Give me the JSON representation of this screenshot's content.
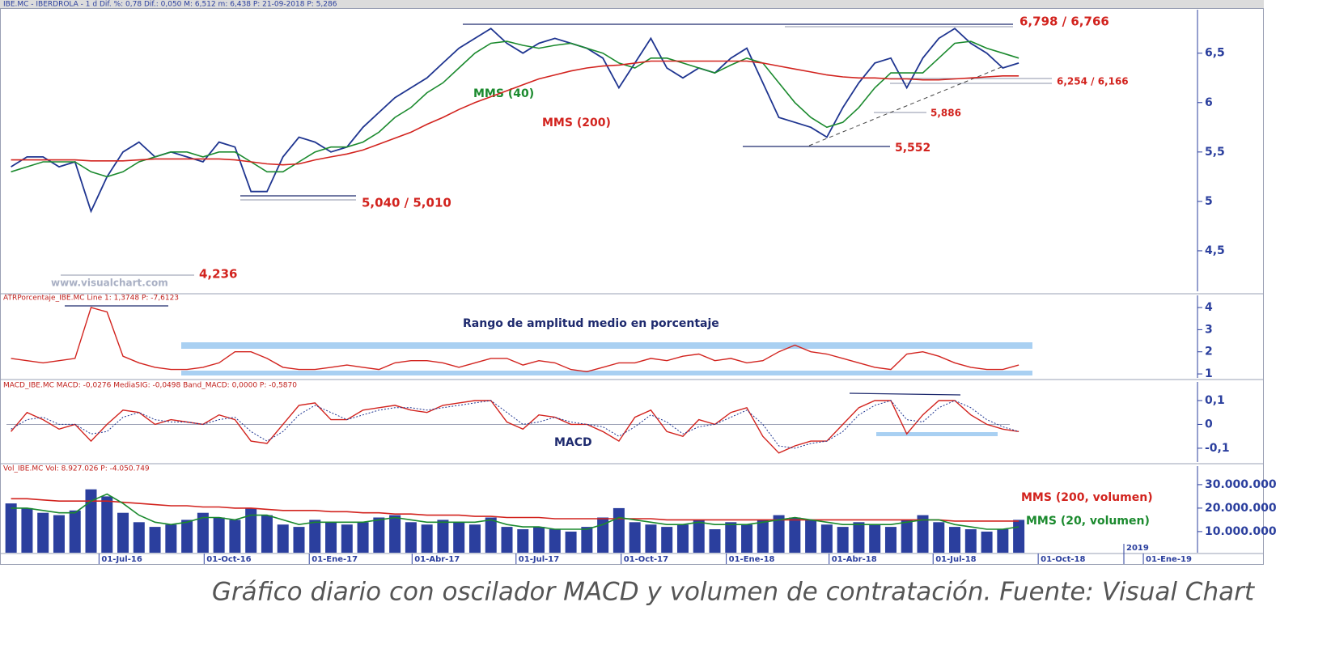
{
  "chart_data": [
    {
      "type": "line",
      "header": "IBE.MC - IBERDROLA - 1 d Dif. %: 0,78 Dif.: 0,050 M: 6,512 m: 6,438 P: 21-09-2018 P: 5,286",
      "x": [
        "2016-04-15",
        "2016-04-29",
        "2016-05-13",
        "2016-05-27",
        "2016-06-10",
        "2016-06-24",
        "2016-07-08",
        "2016-07-22",
        "2016-08-05",
        "2016-08-19",
        "2016-09-02",
        "2016-09-16",
        "2016-09-30",
        "2016-10-14",
        "2016-10-28",
        "2016-11-11",
        "2016-11-25",
        "2016-12-09",
        "2016-12-23",
        "2017-01-06",
        "2017-01-20",
        "2017-02-03",
        "2017-02-17",
        "2017-03-03",
        "2017-03-17",
        "2017-03-31",
        "2017-04-14",
        "2017-04-28",
        "2017-05-12",
        "2017-05-26",
        "2017-06-09",
        "2017-06-23",
        "2017-07-07",
        "2017-07-21",
        "2017-08-04",
        "2017-08-18",
        "2017-09-01",
        "2017-09-15",
        "2017-09-29",
        "2017-10-13",
        "2017-10-27",
        "2017-11-10",
        "2017-11-24",
        "2017-12-08",
        "2017-12-22",
        "2018-01-05",
        "2018-01-19",
        "2018-02-02",
        "2018-02-16",
        "2018-03-02",
        "2018-03-16",
        "2018-03-30",
        "2018-04-13",
        "2018-04-27",
        "2018-05-11",
        "2018-05-25",
        "2018-06-08",
        "2018-06-22",
        "2018-07-06",
        "2018-07-20",
        "2018-08-03",
        "2018-08-17",
        "2018-08-31",
        "2018-09-14"
      ],
      "xlim": [
        "2016-04-11",
        "2019-02-16"
      ],
      "xticks": [
        {
          "value": "2016-07-01",
          "label": "01-Jul-16"
        },
        {
          "value": "2016-10-01",
          "label": "01-Oct-16"
        },
        {
          "value": "2017-01-01",
          "label": "01-Ene-17"
        },
        {
          "value": "2017-04-01",
          "label": "01-Abr-17"
        },
        {
          "value": "2017-07-01",
          "label": "01-Jul-17"
        },
        {
          "value": "2017-10-01",
          "label": "01-Oct-17"
        },
        {
          "value": "2018-01-01",
          "label": "01-Ene-18"
        },
        {
          "value": "2018-04-01",
          "label": "01-Abr-18"
        },
        {
          "value": "2018-07-01",
          "label": "01-Jul-18"
        },
        {
          "value": "2018-10-01",
          "label": "01-Oct-18"
        },
        {
          "value": "2019-01-01",
          "label": "01-Ene-19"
        }
      ],
      "values": [
        5.35,
        5.45,
        5.45,
        5.35,
        5.4,
        4.9,
        5.25,
        5.5,
        5.6,
        5.45,
        5.5,
        5.45,
        5.4,
        5.6,
        5.55,
        5.1,
        5.1,
        5.45,
        5.65,
        5.6,
        5.5,
        5.55,
        5.75,
        5.9,
        6.05,
        6.15,
        6.25,
        6.4,
        6.55,
        6.65,
        6.75,
        6.6,
        6.5,
        6.6,
        6.65,
        6.6,
        6.55,
        6.45,
        6.15,
        6.4,
        6.65,
        6.35,
        6.25,
        6.35,
        6.3,
        6.45,
        6.55,
        6.2,
        5.85,
        5.8,
        5.75,
        5.65,
        5.95,
        6.2,
        6.4,
        6.45,
        6.15,
        6.45,
        6.65,
        6.75,
        6.6,
        6.5,
        6.35,
        6.4
      ],
      "color": "#1f3590",
      "series": [
        {
          "name": "MMS (40)",
          "color": "#1b8a2e",
          "values": [
            5.3,
            5.35,
            5.4,
            5.4,
            5.4,
            5.3,
            5.25,
            5.3,
            5.4,
            5.45,
            5.5,
            5.5,
            5.45,
            5.5,
            5.5,
            5.4,
            5.3,
            5.3,
            5.4,
            5.5,
            5.55,
            5.55,
            5.6,
            5.7,
            5.85,
            5.95,
            6.1,
            6.2,
            6.35,
            6.5,
            6.6,
            6.62,
            6.58,
            6.55,
            6.58,
            6.6,
            6.55,
            6.5,
            6.4,
            6.35,
            6.45,
            6.45,
            6.4,
            6.35,
            6.3,
            6.38,
            6.45,
            6.4,
            6.2,
            6.0,
            5.85,
            5.75,
            5.8,
            5.95,
            6.15,
            6.3,
            6.3,
            6.3,
            6.45,
            6.6,
            6.62,
            6.55,
            6.5,
            6.45
          ]
        },
        {
          "name": "MMS (200)",
          "color": "#d2231e",
          "values": [
            5.42,
            5.42,
            5.42,
            5.42,
            5.42,
            5.41,
            5.41,
            5.41,
            5.42,
            5.43,
            5.43,
            5.43,
            5.43,
            5.43,
            5.42,
            5.4,
            5.38,
            5.37,
            5.38,
            5.42,
            5.45,
            5.48,
            5.52,
            5.58,
            5.64,
            5.7,
            5.78,
            5.85,
            5.93,
            6.0,
            6.06,
            6.12,
            6.18,
            6.24,
            6.28,
            6.32,
            6.35,
            6.37,
            6.38,
            6.4,
            6.42,
            6.42,
            6.42,
            6.42,
            6.42,
            6.42,
            6.42,
            6.4,
            6.37,
            6.34,
            6.31,
            6.28,
            6.26,
            6.25,
            6.25,
            6.24,
            6.24,
            6.23,
            6.23,
            6.24,
            6.25,
            6.26,
            6.27,
            6.27
          ]
        }
      ],
      "ylim": [
        4.09,
        6.94
      ],
      "yticks": [
        {
          "value": 6.5,
          "label": "6,5"
        },
        6,
        {
          "value": 5.5,
          "label": "5,5"
        },
        5,
        {
          "value": 4.5,
          "label": "4,5"
        }
      ],
      "annotations": [
        "6,798 / 6,766",
        "6,254 / 6,166",
        "5,886",
        "5,552",
        "5,040 / 5,010",
        "4,236",
        "www.visualchart.com"
      ]
    },
    {
      "type": "line",
      "header": "ATRPorcentaje_IBE.MC Line 1: 1,3748 P: -7,6123",
      "values": [
        1.7,
        1.6,
        1.5,
        1.6,
        1.7,
        4.0,
        3.8,
        1.8,
        1.5,
        1.3,
        1.2,
        1.2,
        1.3,
        1.5,
        2.0,
        2.0,
        1.7,
        1.3,
        1.2,
        1.2,
        1.3,
        1.4,
        1.3,
        1.2,
        1.5,
        1.6,
        1.6,
        1.5,
        1.3,
        1.5,
        1.7,
        1.7,
        1.4,
        1.6,
        1.5,
        1.2,
        1.1,
        1.3,
        1.5,
        1.5,
        1.7,
        1.6,
        1.8,
        1.9,
        1.6,
        1.7,
        1.5,
        1.6,
        2.0,
        2.3,
        2.0,
        1.9,
        1.7,
        1.5,
        1.3,
        1.2,
        1.9,
        2.0,
        1.8,
        1.5,
        1.3,
        1.2,
        1.2,
        1.4
      ],
      "color": "#d2231e",
      "ylim": [
        0.82,
        4.55
      ],
      "yticks": [
        4,
        3,
        2,
        1
      ],
      "annotations": [
        "Rango de amplitud medio en porcentaje"
      ]
    },
    {
      "type": "line",
      "header": "MACD_IBE.MC MACD: -0,0276 MediaSIG: -0,0498 Band_MACD: 0,0000 P: -0,5870",
      "values": [
        -0.03,
        0.05,
        0.02,
        -0.02,
        0.0,
        -0.07,
        0.0,
        0.06,
        0.05,
        0.0,
        0.02,
        0.01,
        0.0,
        0.04,
        0.02,
        -0.07,
        -0.08,
        0.0,
        0.08,
        0.09,
        0.02,
        0.02,
        0.06,
        0.07,
        0.08,
        0.06,
        0.05,
        0.08,
        0.09,
        0.1,
        0.1,
        0.01,
        -0.02,
        0.04,
        0.03,
        0.0,
        0.0,
        -0.03,
        -0.07,
        0.03,
        0.06,
        -0.03,
        -0.05,
        0.02,
        0.0,
        0.05,
        0.07,
        -0.05,
        -0.12,
        -0.09,
        -0.07,
        -0.07,
        0.0,
        0.07,
        0.1,
        0.1,
        -0.04,
        0.04,
        0.1,
        0.1,
        0.04,
        0.0,
        -0.02,
        -0.03
      ],
      "color": "#d2231e",
      "signal": [
        -0.02,
        0.02,
        0.03,
        0.0,
        0.0,
        -0.04,
        -0.03,
        0.03,
        0.05,
        0.02,
        0.01,
        0.01,
        0.0,
        0.02,
        0.03,
        -0.03,
        -0.07,
        -0.03,
        0.04,
        0.08,
        0.05,
        0.02,
        0.04,
        0.06,
        0.07,
        0.07,
        0.06,
        0.07,
        0.08,
        0.09,
        0.1,
        0.05,
        0.0,
        0.01,
        0.03,
        0.01,
        0.0,
        -0.01,
        -0.05,
        -0.01,
        0.04,
        0.01,
        -0.04,
        -0.01,
        0.0,
        0.03,
        0.06,
        0.0,
        -0.09,
        -0.1,
        -0.08,
        -0.07,
        -0.03,
        0.04,
        0.08,
        0.1,
        0.02,
        0.01,
        0.07,
        0.1,
        0.07,
        0.02,
        -0.01,
        -0.03
      ],
      "signal_color": "#1f3590",
      "ylim": [
        -0.158,
        0.178
      ],
      "yticks": [
        {
          "value": 0.1,
          "label": "0,1"
        },
        0,
        {
          "value": -0.1,
          "label": "-0,1"
        }
      ],
      "annotations": [
        "MACD"
      ]
    },
    {
      "type": "bar",
      "header": "Vol_IBE.MC Vol: 8.927.026 P: -4.050.749",
      "values": [
        22000000,
        20000000,
        18000000,
        17000000,
        19000000,
        28000000,
        25000000,
        18000000,
        14000000,
        12000000,
        13000000,
        15000000,
        18000000,
        16000000,
        15000000,
        20000000,
        17000000,
        13000000,
        12000000,
        15000000,
        14000000,
        13000000,
        14000000,
        16000000,
        17000000,
        14000000,
        13000000,
        15000000,
        14000000,
        13000000,
        16000000,
        12000000,
        11000000,
        12000000,
        11000000,
        10000000,
        12000000,
        16000000,
        20000000,
        14000000,
        13000000,
        12000000,
        13000000,
        15000000,
        11000000,
        14000000,
        13000000,
        15000000,
        17000000,
        16000000,
        15000000,
        13000000,
        12000000,
        14000000,
        13000000,
        12000000,
        15000000,
        17000000,
        14000000,
        12000000,
        11000000,
        10000000,
        11000000,
        15000000
      ],
      "color": "#2b3f9e",
      "series": [
        {
          "name": "MMS (200, volumen)",
          "color": "#d2231e",
          "values": [
            24000000,
            24000000,
            23500000,
            23000000,
            23000000,
            23000000,
            23000000,
            22500000,
            22000000,
            21500000,
            21000000,
            21000000,
            20500000,
            20500000,
            20000000,
            20000000,
            19500000,
            19000000,
            19000000,
            19000000,
            18500000,
            18500000,
            18000000,
            18000000,
            17500000,
            17500000,
            17000000,
            17000000,
            17000000,
            16500000,
            16500000,
            16000000,
            16000000,
            16000000,
            15500000,
            15500000,
            15500000,
            15500000,
            15500000,
            15500000,
            15500000,
            15000000,
            15000000,
            15000000,
            15000000,
            15000000,
            15000000,
            15000000,
            15000000,
            15000000,
            15000000,
            15000000,
            15000000,
            15000000,
            15000000,
            15000000,
            15000000,
            15000000,
            15000000,
            14500000,
            14500000,
            14500000,
            14500000,
            14500000
          ]
        },
        {
          "name": "MMS (20, volumen)",
          "color": "#1b8a2e",
          "values": [
            20000000,
            20000000,
            19000000,
            18000000,
            18000000,
            23000000,
            26000000,
            22000000,
            17000000,
            14000000,
            13000000,
            14000000,
            16000000,
            16000000,
            15000000,
            17000000,
            17000000,
            15000000,
            13000000,
            14000000,
            14000000,
            14000000,
            14000000,
            15000000,
            16000000,
            15000000,
            14000000,
            14000000,
            14000000,
            14000000,
            15000000,
            13000000,
            12000000,
            12000000,
            11000000,
            11000000,
            11000000,
            13000000,
            16000000,
            15000000,
            14000000,
            13000000,
            13000000,
            14000000,
            13000000,
            13000000,
            13000000,
            14000000,
            15000000,
            16000000,
            15000000,
            14000000,
            13000000,
            13000000,
            13000000,
            13000000,
            14000000,
            15000000,
            15000000,
            13000000,
            12000000,
            11000000,
            11000000,
            12000000
          ]
        }
      ],
      "ylim": [
        1000000,
        37900000
      ],
      "yticks": [
        {
          "value": 30000000,
          "label": "30.000.000"
        },
        {
          "value": 20000000,
          "label": "20.000.000"
        },
        {
          "value": 10000000,
          "label": "10.000.000"
        }
      ],
      "annotations": [
        "2019"
      ]
    }
  ],
  "caption": "Gráfico diario con oscilador MACD y volumen de contratación. Fuente: Visual Chart"
}
